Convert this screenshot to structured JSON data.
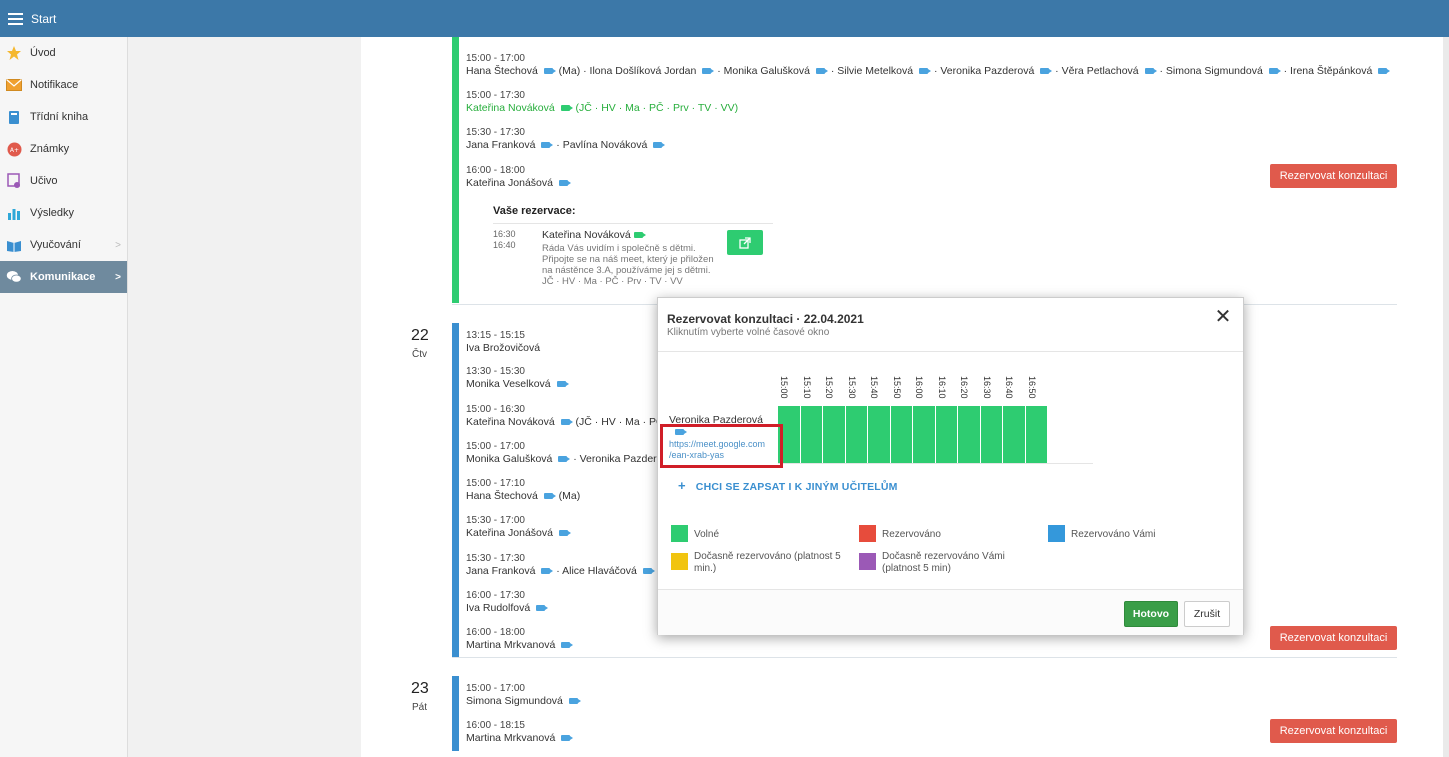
{
  "topbar": {
    "title": "Start"
  },
  "sidebar": {
    "items": [
      {
        "label": "Úvod",
        "icon": "star-icon"
      },
      {
        "label": "Notifikace",
        "icon": "envelope-icon"
      },
      {
        "label": "Třídní kniha",
        "icon": "book-icon"
      },
      {
        "label": "Známky",
        "icon": "grades-icon"
      },
      {
        "label": "Učivo",
        "icon": "learning-icon"
      },
      {
        "label": "Výsledky",
        "icon": "bar-chart-icon"
      },
      {
        "label": "Vyučování",
        "icon": "open-book-icon"
      },
      {
        "label": "Komunikace",
        "icon": "chat-icon"
      }
    ]
  },
  "days": {
    "d21": {
      "slots": [
        {
          "time": "15:00 - 17:00",
          "names": "Hana Štechová ▪ (Ma) · Ilona Došlíková Jordan ▪ · Monika Galušková ▪ · Silvie Metelková ▪ · Veronika Pazderová ▪ · Věra Petlachová ▪ · Simona Sigmundová ▪ · Irena Štěpánková ▪"
        },
        {
          "time": "15:00 - 17:30",
          "names": "Kateřina Nováková ▪ (JČ · HV · Ma · PČ · Prv · TV · VV)"
        },
        {
          "time": "15:30 - 17:30",
          "names": "Jana Franková ▪ · Pavlína Nováková ▪"
        },
        {
          "time": "16:00 - 18:00",
          "names": "Kateřina Jonášová ▪"
        }
      ],
      "button": "Rezervovat konzultaci",
      "my_reservations": {
        "heading": "Vaše rezervace:",
        "time_from": "16:30",
        "time_to": "16:40",
        "teacher": "Kateřina Nováková",
        "note1": "Ráda Vás uvidím i společně s dětmi.",
        "note2": "Připojte se na náš meet, který je přiložen",
        "note3": "na nástěnce 3.A, používáme jej s dětmi.",
        "subjects": "JČ · HV · Ma · PČ · Prv · TV · VV"
      }
    },
    "d22": {
      "num": "22",
      "name": "Čtv",
      "slots": [
        {
          "time": "13:15 - 15:15",
          "names": "Iva Brožovičová"
        },
        {
          "time": "13:30 - 15:30",
          "names": "Monika Veselková ▪"
        },
        {
          "time": "15:00 - 16:30",
          "names": "Kateřina Nováková ▪ (JČ · HV · Ma · PČ"
        },
        {
          "time": "15:00 - 17:00",
          "names": "Monika Galušková ▪ · Veronika Pazder"
        },
        {
          "time": "15:00 - 17:10",
          "names": "Hana Štechová ▪ (Ma)"
        },
        {
          "time": "15:30 - 17:00",
          "names": "Kateřina Jonášová ▪"
        },
        {
          "time": "15:30 - 17:30",
          "names": "Jana Franková ▪ · Alice Hlaváčová ▪"
        },
        {
          "time": "16:00 - 17:30",
          "names": "Iva Rudolfová ▪"
        },
        {
          "time": "16:00 - 18:00",
          "names": "Martina Mrkvanová ▪"
        }
      ],
      "button": "Rezervovat konzultaci"
    },
    "d23": {
      "num": "23",
      "name": "Pát",
      "slots": [
        {
          "time": "15:00 - 17:00",
          "names": "Simona Sigmundová ▪"
        },
        {
          "time": "16:00 - 18:15",
          "names": "Martina Mrkvanová ▪"
        }
      ],
      "button": "Rezervovat konzultaci"
    }
  },
  "modal": {
    "title": "Rezervovat konzultaci · 22.04.2021",
    "subtitle": "Kliknutím vyberte volné časové okno",
    "teacher": "Veronika Pazderová",
    "link1": "https://meet.google.com",
    "link2": "/ean-xrab-yas",
    "times": [
      "15:00",
      "15:10",
      "15:20",
      "15:30",
      "15:40",
      "15:50",
      "16:00",
      "16:10",
      "16:20",
      "16:30",
      "16:40",
      "16:50"
    ],
    "other_teachers": "CHCI SE ZAPSAT I K JINÝM UČITELŮM",
    "legend": {
      "free": "Volné",
      "reserved": "Rezervováno",
      "reserved_by_you": "Rezervováno Vámi",
      "temp_reserved": "Dočasně rezervováno (platnost 5 min.)",
      "temp_reserved_by_you": "Dočasně rezervováno Vámi (platnost 5 min)"
    },
    "colors": {
      "free": "#2ecc71",
      "reserved": "#e74c3c",
      "reserved_by_you": "#3498db",
      "temp": "#f1c40f",
      "temp_you": "#9b59b6"
    },
    "done": "Hotovo",
    "cancel": "Zrušit"
  }
}
